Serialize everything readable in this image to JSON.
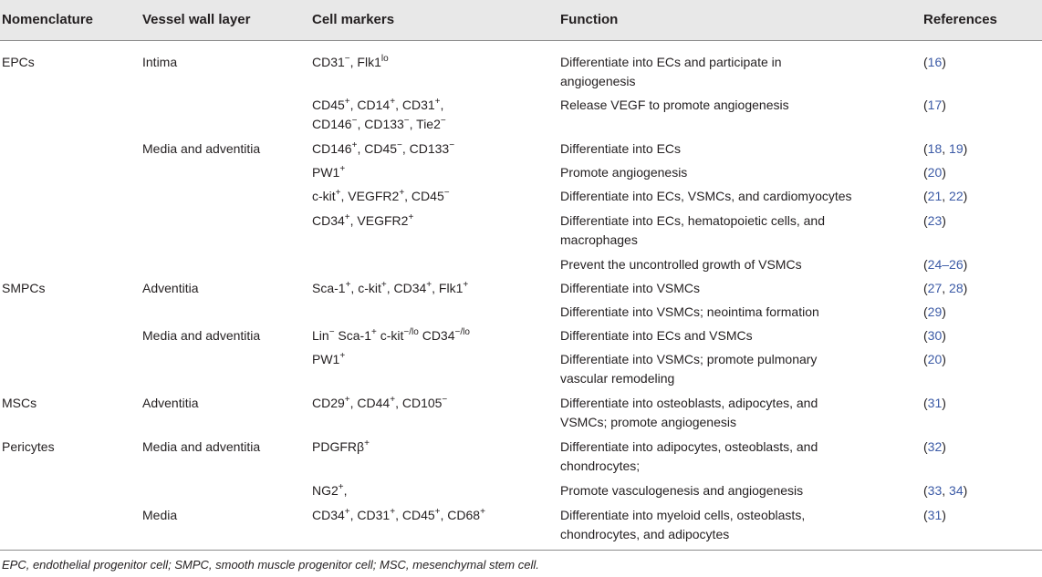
{
  "headers": {
    "nomenclature": "Nomenclature",
    "layer": "Vessel wall layer",
    "markers": "Cell markers",
    "function": "Function",
    "references": "References"
  },
  "rows": [
    {
      "nomenclature": "EPCs",
      "layer": "Intima",
      "markers": [
        [
          "CD31",
          "−"
        ],
        [
          ", Flk1",
          "lo"
        ]
      ],
      "function": "Differentiate into ECs and participate in angiogenesis",
      "function_lines": [
        "Differentiate into ECs and participate in",
        "angiogenesis"
      ],
      "refs": [
        "16"
      ]
    },
    {
      "nomenclature": "",
      "layer": "",
      "markers_lines": [
        [
          [
            "CD45",
            "+"
          ],
          [
            ", CD14",
            "+"
          ],
          [
            ", CD31",
            "+"
          ],
          [
            ",",
            ""
          ]
        ],
        [
          [
            "CD146",
            "−"
          ],
          [
            ", CD133",
            "−"
          ],
          [
            ", Tie2",
            "−"
          ]
        ]
      ],
      "function_lines": [
        "Release VEGF to promote angiogenesis"
      ],
      "refs": [
        "17"
      ]
    },
    {
      "nomenclature": "",
      "layer": "Media and adventitia",
      "markers": [
        [
          "CD146",
          "+"
        ],
        [
          ", CD45",
          "−"
        ],
        [
          ", CD133",
          "−"
        ]
      ],
      "function_lines": [
        "Differentiate into ECs"
      ],
      "refs": [
        "18",
        "19"
      ]
    },
    {
      "nomenclature": "",
      "layer": "",
      "markers": [
        [
          "PW1",
          "+"
        ]
      ],
      "function_lines": [
        "Promote angiogenesis"
      ],
      "refs": [
        "20"
      ]
    },
    {
      "nomenclature": "",
      "layer": "",
      "markers": [
        [
          "c-kit",
          "+"
        ],
        [
          ", VEGFR2",
          "+"
        ],
        [
          ", CD45",
          "−"
        ]
      ],
      "function_lines": [
        "Differentiate into ECs, VSMCs, and cardiomyocytes"
      ],
      "refs": [
        "21",
        "22"
      ]
    },
    {
      "nomenclature": "",
      "layer": "",
      "markers": [
        [
          "CD34",
          "+"
        ],
        [
          ", VEGFR2",
          "+"
        ]
      ],
      "function_lines": [
        "Differentiate into ECs, hematopoietic cells, and",
        "macrophages"
      ],
      "refs": [
        "23"
      ]
    },
    {
      "nomenclature": "",
      "layer": "",
      "markers": [],
      "function_lines": [
        "Prevent the uncontrolled growth of VSMCs"
      ],
      "refs": [
        "24–26"
      ]
    },
    {
      "nomenclature": "SMPCs",
      "layer": "Adventitia",
      "markers": [
        [
          "Sca-1",
          "+"
        ],
        [
          ", c-kit",
          "+"
        ],
        [
          ", CD34",
          "+"
        ],
        [
          ", Flk1",
          "+"
        ]
      ],
      "function_lines": [
        "Differentiate into VSMCs"
      ],
      "refs": [
        "27",
        "28"
      ]
    },
    {
      "nomenclature": "",
      "layer": "",
      "markers": [],
      "function_lines": [
        "Differentiate into VSMCs; neointima formation"
      ],
      "refs": [
        "29"
      ]
    },
    {
      "nomenclature": "",
      "layer": "Media and adventitia",
      "markers": [
        [
          "Lin",
          "−"
        ],
        [
          " Sca-1",
          "+"
        ],
        [
          " c-kit",
          "−/lo"
        ],
        [
          " CD34",
          "−/lo"
        ]
      ],
      "function_lines": [
        "Differentiate into ECs and VSMCs"
      ],
      "refs": [
        "30"
      ]
    },
    {
      "nomenclature": "",
      "layer": "",
      "markers": [
        [
          "PW1",
          "+"
        ]
      ],
      "function_lines": [
        "Differentiate into VSMCs; promote pulmonary",
        "vascular remodeling"
      ],
      "refs": [
        "20"
      ]
    },
    {
      "nomenclature": "MSCs",
      "layer": "Adventitia",
      "markers": [
        [
          "CD29",
          "+"
        ],
        [
          ", CD44",
          "+"
        ],
        [
          ", CD105",
          "−"
        ]
      ],
      "function_lines": [
        "Differentiate into osteoblasts, adipocytes, and",
        "VSMCs; promote angiogenesis"
      ],
      "refs": [
        "31"
      ]
    },
    {
      "nomenclature": "Pericytes",
      "layer": "Media and adventitia",
      "markers": [
        [
          "PDGFRβ",
          "+"
        ]
      ],
      "function_lines": [
        "Differentiate into adipocytes, osteoblasts, and",
        "chondrocytes;"
      ],
      "refs": [
        "32"
      ]
    },
    {
      "nomenclature": "",
      "layer": "",
      "markers": [
        [
          "NG2",
          "+"
        ],
        [
          ",",
          ""
        ]
      ],
      "function_lines": [
        "Promote vasculogenesis and angiogenesis"
      ],
      "refs": [
        "33",
        "34"
      ]
    },
    {
      "nomenclature": "",
      "layer": "Media",
      "markers": [
        [
          "CD34",
          "+"
        ],
        [
          ", CD31",
          "+"
        ],
        [
          ", CD45",
          "+"
        ],
        [
          ", CD68",
          "+"
        ]
      ],
      "function_lines": [
        "Differentiate into myeloid cells, osteoblasts,",
        "chondrocytes, and adipocytes"
      ],
      "refs": [
        "31"
      ]
    }
  ],
  "footnote": "EPC, endothelial progenitor cell; SMPC, smooth muscle progenitor cell; MSC, mesenchymal stem cell."
}
